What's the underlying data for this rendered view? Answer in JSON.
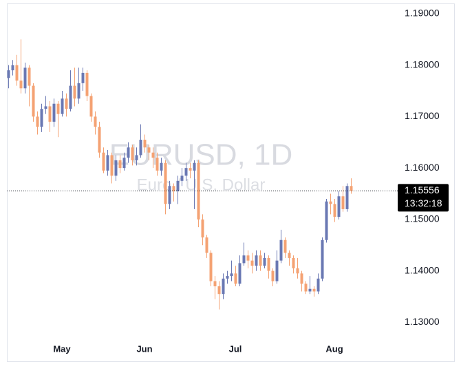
{
  "chart_data": {
    "type": "candlestick",
    "watermark": {
      "title": "EURUSD, 1D",
      "subtitle": "Euro / U.S. Dollar"
    },
    "categories": [
      null,
      null,
      null,
      null,
      null,
      null,
      null,
      null,
      null,
      null,
      null,
      null,
      null,
      "May",
      null,
      null,
      null,
      null,
      null,
      null,
      null,
      null,
      null,
      null,
      null,
      null,
      null,
      null,
      null,
      null,
      null,
      null,
      null,
      "Jun",
      null,
      null,
      null,
      null,
      null,
      null,
      null,
      null,
      null,
      null,
      null,
      null,
      null,
      null,
      null,
      null,
      null,
      null,
      null,
      null,
      null,
      "Jul",
      null,
      null,
      null,
      null,
      null,
      null,
      null,
      null,
      null,
      null,
      null,
      null,
      null,
      null,
      null,
      null,
      null,
      null,
      null,
      null,
      null,
      null,
      null,
      "Aug",
      null,
      null,
      null,
      null
    ],
    "open": [
      1.1775,
      1.179,
      1.18,
      1.177,
      1.1755,
      1.1795,
      1.176,
      1.17,
      1.168,
      1.1715,
      1.172,
      1.169,
      1.1725,
      1.1705,
      1.1735,
      1.1715,
      1.176,
      1.1735,
      1.1765,
      1.1785,
      1.174,
      1.17,
      1.168,
      1.163,
      1.1595,
      1.1625,
      1.1585,
      1.1615,
      1.16,
      1.162,
      1.164,
      1.1615,
      1.1625,
      1.1655,
      1.164,
      1.163,
      1.162,
      1.1595,
      1.161,
      1.153,
      1.1565,
      1.1555,
      1.1575,
      1.1585,
      1.16,
      1.1595,
      1.161,
      1.15,
      1.1465,
      1.1435,
      1.138,
      1.137,
      1.1355,
      1.1385,
      1.139,
      1.1395,
      1.1375,
      1.1415,
      1.143,
      1.142,
      1.141,
      1.143,
      1.141,
      1.1425,
      1.14,
      1.138,
      1.142,
      1.146,
      1.1435,
      1.1425,
      1.1405,
      1.1395,
      1.1375,
      1.136,
      1.1365,
      1.136,
      1.1385,
      1.146,
      1.1535,
      1.153,
      1.1505,
      1.1545,
      1.152,
      1.1565
    ],
    "high": [
      1.18,
      1.181,
      1.182,
      1.185,
      1.1805,
      1.18,
      1.1765,
      1.171,
      1.1725,
      1.174,
      1.173,
      1.1735,
      1.173,
      1.175,
      1.1745,
      1.179,
      1.1795,
      1.1795,
      1.1795,
      1.179,
      1.1745,
      1.171,
      1.169,
      1.164,
      1.1635,
      1.163,
      1.1625,
      1.1625,
      1.163,
      1.165,
      1.1645,
      1.164,
      1.1685,
      1.1665,
      1.1645,
      1.164,
      1.163,
      1.162,
      1.1615,
      1.1575,
      1.157,
      1.1585,
      1.16,
      1.161,
      1.161,
      1.1615,
      1.1615,
      1.151,
      1.147,
      1.144,
      1.139,
      1.138,
      1.1395,
      1.14,
      1.142,
      1.141,
      1.143,
      1.1455,
      1.144,
      1.1435,
      1.144,
      1.144,
      1.1435,
      1.143,
      1.1405,
      1.144,
      1.148,
      1.1465,
      1.144,
      1.143,
      1.1425,
      1.14,
      1.138,
      1.139,
      1.137,
      1.1395,
      1.1465,
      1.154,
      1.155,
      1.154,
      1.1555,
      1.1565,
      1.157,
      1.158
    ],
    "low": [
      1.1755,
      1.178,
      1.176,
      1.1745,
      1.1745,
      1.172,
      1.169,
      1.1665,
      1.167,
      1.1705,
      1.167,
      1.168,
      1.166,
      1.17,
      1.17,
      1.171,
      1.172,
      1.1725,
      1.175,
      1.173,
      1.169,
      1.1665,
      1.162,
      1.159,
      1.1585,
      1.157,
      1.1575,
      1.159,
      1.1595,
      1.161,
      1.1605,
      1.1605,
      1.162,
      1.163,
      1.1615,
      1.16,
      1.1585,
      1.1585,
      1.151,
      1.152,
      1.1535,
      1.153,
      1.1565,
      1.1575,
      1.158,
      1.152,
      1.1485,
      1.145,
      1.1425,
      1.137,
      1.1345,
      1.1325,
      1.1345,
      1.1375,
      1.138,
      1.137,
      1.137,
      1.141,
      1.1405,
      1.1395,
      1.14,
      1.14,
      1.1405,
      1.1385,
      1.137,
      1.1375,
      1.1415,
      1.1425,
      1.141,
      1.1395,
      1.1385,
      1.136,
      1.1355,
      1.1355,
      1.135,
      1.1355,
      1.138,
      1.1455,
      1.151,
      1.1495,
      1.15,
      1.1515,
      1.1515,
      1.155
    ],
    "close": [
      1.179,
      1.18,
      1.177,
      1.1755,
      1.1795,
      1.176,
      1.17,
      1.168,
      1.1715,
      1.172,
      1.169,
      1.1725,
      1.1705,
      1.1735,
      1.1715,
      1.176,
      1.1735,
      1.1765,
      1.1785,
      1.174,
      1.17,
      1.168,
      1.163,
      1.1595,
      1.1625,
      1.1585,
      1.1615,
      1.16,
      1.162,
      1.164,
      1.1615,
      1.1625,
      1.1655,
      1.164,
      1.163,
      1.162,
      1.1595,
      1.161,
      1.153,
      1.1565,
      1.1555,
      1.1575,
      1.1585,
      1.16,
      1.1595,
      1.161,
      1.15,
      1.1465,
      1.1435,
      1.138,
      1.137,
      1.1355,
      1.1385,
      1.139,
      1.1395,
      1.1375,
      1.1415,
      1.143,
      1.142,
      1.141,
      1.143,
      1.141,
      1.1425,
      1.14,
      1.138,
      1.142,
      1.146,
      1.1435,
      1.1425,
      1.1405,
      1.1395,
      1.1375,
      1.136,
      1.1365,
      1.136,
      1.1385,
      1.146,
      1.1535,
      1.153,
      1.1505,
      1.1545,
      1.152,
      1.1565,
      1.15556
    ],
    "up_color": "#6a78b3",
    "down_color": "#f4a273",
    "ylim": [
      1.1271,
      1.192
    ],
    "yticks": [
      {
        "value": 1.13,
        "label": "1.13000"
      },
      {
        "value": 1.14,
        "label": "1.14000"
      },
      {
        "value": 1.15,
        "label": "1.15000"
      },
      {
        "value": 1.16,
        "label": "1.16000"
      },
      {
        "value": 1.17,
        "label": "1.17000"
      },
      {
        "value": 1.18,
        "label": "1.18000"
      },
      {
        "value": 1.19,
        "label": "1.19000"
      }
    ],
    "last_price": {
      "value": 1.15556,
      "label": "1.15556"
    },
    "countdown": "13:32:18"
  }
}
